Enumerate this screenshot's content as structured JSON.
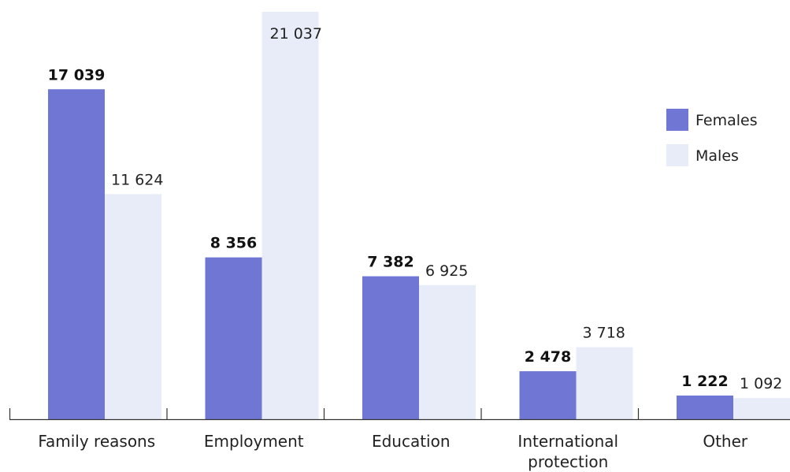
{
  "chart_data": {
    "type": "bar",
    "categories": [
      "Family reasons",
      "Employment",
      "Education",
      "International protection",
      "Other"
    ],
    "category_labels": [
      [
        "Family reasons"
      ],
      [
        "Employment"
      ],
      [
        "Education"
      ],
      [
        "International",
        "protection"
      ],
      [
        "Other"
      ]
    ],
    "series": [
      {
        "name": "Females",
        "values": [
          17039,
          8356,
          7382,
          2478,
          1222
        ],
        "labels": [
          "17 039",
          "8 356",
          "7 382",
          "2 478",
          "1 222"
        ],
        "color": "#7076d4",
        "label_weight": "bold"
      },
      {
        "name": "Males",
        "values": [
          11624,
          21037,
          6925,
          3718,
          1092
        ],
        "labels": [
          "11 624",
          "21 037",
          "6 925",
          "3 718",
          "1 092"
        ],
        "color": "#e8ecf8",
        "label_weight": "normal"
      }
    ],
    "title": "",
    "xlabel": "",
    "ylabel": "",
    "ylim": [
      0,
      21037
    ],
    "grid": false,
    "legend_position": "right"
  }
}
